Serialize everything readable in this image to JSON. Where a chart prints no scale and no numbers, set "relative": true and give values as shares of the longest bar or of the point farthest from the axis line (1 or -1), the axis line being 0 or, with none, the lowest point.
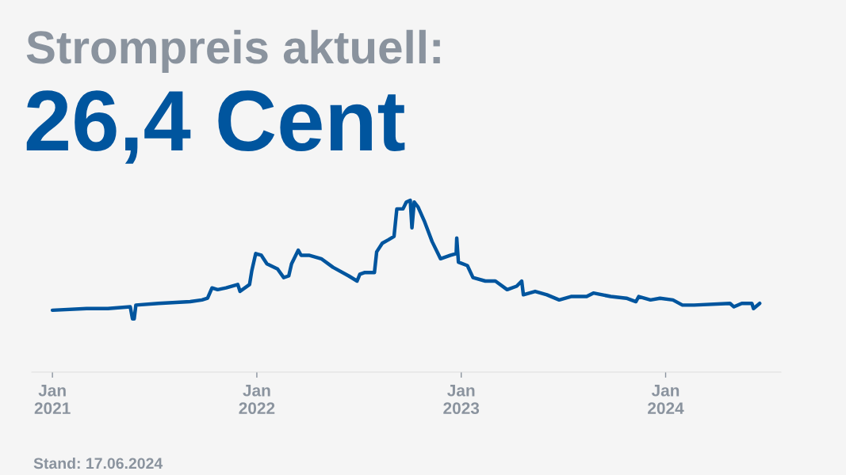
{
  "chart_data": {
    "type": "line",
    "title": "Strompreis aktuell:",
    "subtitle": "26,4 Cent",
    "annotations": [
      "Stand: 17.06.2024"
    ],
    "relative": true,
    "color": "#00559e",
    "xlim": [
      "2020-11-25",
      "2024-07-25"
    ],
    "xticks": [
      {
        "value": "2021-01-01",
        "label": "Jan\n2021"
      },
      {
        "value": "2022-01-01",
        "label": "Jan\n2022"
      },
      {
        "value": "2023-01-01",
        "label": "Jan\n2023"
      },
      {
        "value": "2024-01-01",
        "label": "Jan\n2024"
      }
    ],
    "x": [
      "2021-01-01",
      "2021-03-03",
      "2021-04-10",
      "2021-05-20",
      "2021-05-24",
      "2021-05-27",
      "2021-05-30",
      "2021-07-09",
      "2021-09-04",
      "2021-09-25",
      "2021-10-05",
      "2021-10-13",
      "2021-10-23",
      "2021-11-07",
      "2021-11-28",
      "2021-12-02",
      "2021-12-19",
      "2021-12-23",
      "2021-12-30",
      "2022-01-09",
      "2022-01-19",
      "2022-02-07",
      "2022-02-18",
      "2022-02-27",
      "2022-03-04",
      "2022-03-16",
      "2022-03-21",
      "2022-04-04",
      "2022-04-26",
      "2022-05-17",
      "2022-06-14",
      "2022-06-29",
      "2022-07-04",
      "2022-07-13",
      "2022-07-30",
      "2022-08-03",
      "2022-08-13",
      "2022-08-24",
      "2022-09-03",
      "2022-09-08",
      "2022-09-19",
      "2022-09-25",
      "2022-10-02",
      "2022-10-05",
      "2022-10-09",
      "2022-10-16",
      "2022-10-27",
      "2022-11-10",
      "2022-11-25",
      "2022-12-13",
      "2022-12-23",
      "2022-12-24",
      "2022-12-27",
      "2023-01-12",
      "2023-01-22",
      "2023-02-13",
      "2023-03-03",
      "2023-03-24",
      "2023-04-10",
      "2023-04-19",
      "2023-04-22",
      "2023-05-13",
      "2023-06-03",
      "2023-06-25",
      "2023-07-16",
      "2023-08-13",
      "2023-08-25",
      "2023-09-25",
      "2023-10-23",
      "2023-11-09",
      "2023-11-14",
      "2023-12-05",
      "2023-12-22",
      "2024-01-14",
      "2024-01-31",
      "2024-02-21",
      "2024-04-25",
      "2024-05-02",
      "2024-05-16",
      "2024-06-03",
      "2024-06-06",
      "2024-06-17"
    ],
    "values": [
      0.36,
      0.37,
      0.37,
      0.38,
      0.31,
      0.31,
      0.39,
      0.4,
      0.41,
      0.42,
      0.43,
      0.49,
      0.48,
      0.49,
      0.51,
      0.47,
      0.51,
      0.59,
      0.69,
      0.68,
      0.63,
      0.6,
      0.55,
      0.56,
      0.63,
      0.71,
      0.68,
      0.68,
      0.66,
      0.61,
      0.56,
      0.53,
      0.57,
      0.58,
      0.58,
      0.7,
      0.75,
      0.77,
      0.79,
      0.95,
      0.95,
      0.99,
      1.0,
      0.84,
      0.99,
      0.96,
      0.88,
      0.76,
      0.66,
      0.68,
      0.69,
      0.78,
      0.64,
      0.62,
      0.55,
      0.53,
      0.53,
      0.48,
      0.5,
      0.53,
      0.45,
      0.47,
      0.45,
      0.42,
      0.44,
      0.44,
      0.46,
      0.44,
      0.43,
      0.41,
      0.44,
      0.42,
      0.43,
      0.42,
      0.39,
      0.39,
      0.4,
      0.38,
      0.4,
      0.4,
      0.37,
      0.4
    ]
  }
}
